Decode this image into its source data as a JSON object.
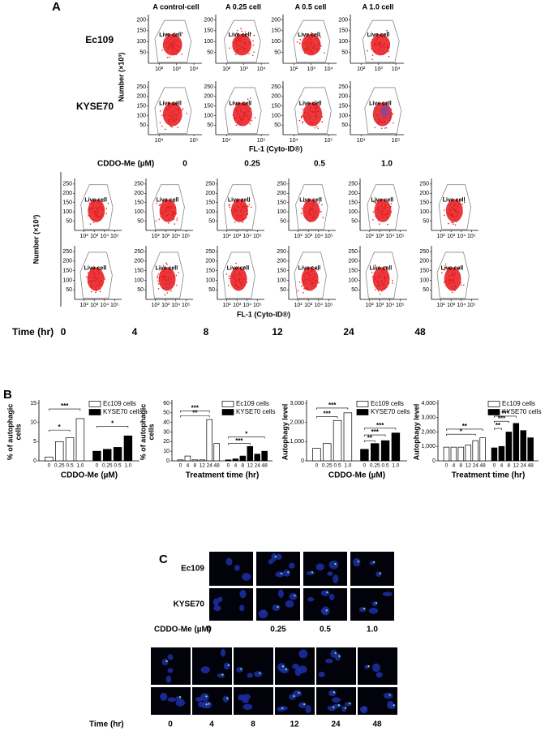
{
  "panel_a": {
    "label": "A",
    "dose_titles": [
      "A control-cell",
      "A 0.25 cell",
      "A 0.5 cell",
      "A 1.0 cell"
    ],
    "rows": [
      "Ec109",
      "KYSE70"
    ],
    "y_label": "Number (×10³)",
    "x_label": "FL-1 (Cyto-ID®)",
    "gate_label": "Live cell",
    "ec109_yticks": [
      200,
      150,
      100,
      50
    ],
    "ec109_xticks": [
      "10²",
      "10³",
      "10⁴"
    ],
    "kyse70_yticks": [
      250,
      200,
      150,
      100,
      50
    ],
    "kyse70_xticks": [
      "10⁴",
      "10⁵"
    ],
    "dose_label": "CDDO-Me (µM)",
    "doses": [
      "0",
      "0.25",
      "0.5",
      "1.0"
    ],
    "time_yticks": [
      250,
      200,
      150,
      100,
      50
    ],
    "time_xticks": [
      "10²",
      "10³",
      "10⁴",
      "10⁵"
    ],
    "time_label": "Time (hr)",
    "times": [
      "0",
      "4",
      "8",
      "12",
      "24",
      "48"
    ]
  },
  "panel_b": {
    "label": "B"
  },
  "chart_data": [
    {
      "type": "bar",
      "y_label": [
        "% of autophagic",
        "cells"
      ],
      "x_label": "CDDO-Me (µM)",
      "categories": [
        "0",
        "0.25",
        "0.5",
        "1.0"
      ],
      "series": [
        {
          "name": "Ec109 cells",
          "color": "#ffffff",
          "values": [
            1,
            5,
            6,
            11
          ]
        },
        {
          "name": "KYSE70 cells",
          "color": "#000000",
          "values": [
            2.5,
            3,
            3.5,
            6.5
          ]
        }
      ],
      "ylim": [
        0,
        15
      ],
      "yticks": [
        0,
        5,
        10,
        15
      ],
      "annotations": [
        "***",
        "*",
        "*"
      ]
    },
    {
      "type": "bar",
      "y_label": [
        "% of autophagic",
        "cells"
      ],
      "x_label": "Treatment time (hr)",
      "categories": [
        "0",
        "4",
        "8",
        "12",
        "24",
        "48"
      ],
      "series": [
        {
          "name": "Ec109 cells",
          "color": "#ffffff",
          "values": [
            1,
            5,
            1,
            1,
            43,
            18
          ]
        },
        {
          "name": "KYSE70 cells",
          "color": "#000000",
          "values": [
            1,
            2,
            5,
            15,
            7,
            10
          ]
        }
      ],
      "ylim": [
        0,
        60
      ],
      "yticks": [
        0,
        10,
        20,
        30,
        40,
        50,
        60
      ],
      "annotations": [
        "***",
        "**",
        "*",
        "***"
      ]
    },
    {
      "type": "bar",
      "y_label": [
        "Autophagy level"
      ],
      "x_label": "CDDO-Me (µM)",
      "categories": [
        "0",
        "0.25",
        "0.5",
        "1.0"
      ],
      "series": [
        {
          "name": "Ec109 cells",
          "color": "#ffffff",
          "values": [
            650,
            900,
            2100,
            2500
          ]
        },
        {
          "name": "KYSE70 cells",
          "color": "#000000",
          "values": [
            600,
            900,
            1050,
            1450
          ]
        }
      ],
      "ylim": [
        0,
        3000
      ],
      "yticks": [
        0,
        {
          "value": 1000,
          "label": "1,000"
        },
        {
          "value": 2000,
          "label": "2,000"
        },
        {
          "value": 3000,
          "label": "3,000"
        }
      ],
      "annotations": [
        "***",
        "***",
        "***",
        "***",
        "**"
      ]
    },
    {
      "type": "bar",
      "y_label": [
        "Autophagy level"
      ],
      "x_label": "Treatment time (hr)",
      "categories": [
        "0",
        "4",
        "8",
        "12",
        "24",
        "48"
      ],
      "series": [
        {
          "name": "Ec109 cells",
          "color": "#ffffff",
          "values": [
            950,
            950,
            950,
            1100,
            1400,
            1600
          ]
        },
        {
          "name": "KYSE70 cells",
          "color": "#000000",
          "values": [
            900,
            1000,
            2000,
            2600,
            2100,
            1600
          ]
        }
      ],
      "ylim": [
        0,
        4000
      ],
      "yticks": [
        0,
        {
          "value": 1000,
          "label": "1,000"
        },
        {
          "value": 2000,
          "label": "2,000"
        },
        {
          "value": 3000,
          "label": "3,000"
        },
        {
          "value": 4000,
          "label": "4,000"
        }
      ],
      "annotations": [
        "**",
        "*",
        "***",
        "***",
        "**"
      ]
    }
  ],
  "panel_c": {
    "label": "C",
    "rows": [
      "Ec109",
      "KYSE70"
    ],
    "dose_label": "CDDO-Me (µM)",
    "doses": [
      "0",
      "0.25",
      "0.5",
      "1.0"
    ],
    "time_label": "Time (hr)",
    "times": [
      "0",
      "4",
      "8",
      "12",
      "24",
      "48"
    ]
  }
}
